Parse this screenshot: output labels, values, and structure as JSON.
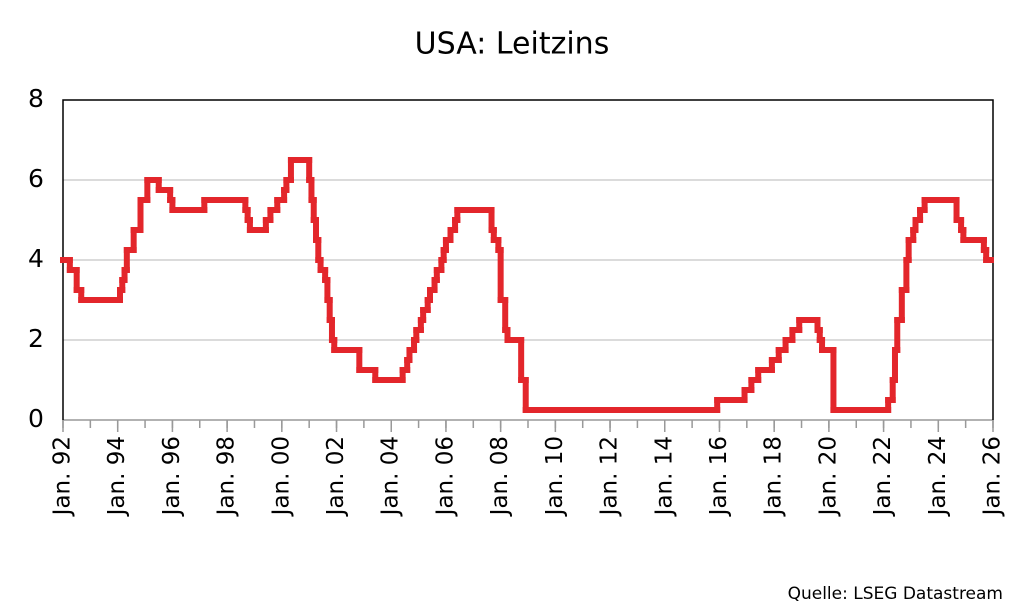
{
  "chart_data": {
    "type": "step",
    "title": "USA: Leitzins",
    "source": "Quelle: LSEG Datastream",
    "color": "#e3262b",
    "grid": true,
    "step": "post",
    "xlim": [
      "1992-01",
      "2026-01"
    ],
    "xticks": [
      {
        "value": "1992-01",
        "label": "Jan. 92"
      },
      {
        "value": "1994-01",
        "label": "Jan. 94"
      },
      {
        "value": "1996-01",
        "label": "Jan. 96"
      },
      {
        "value": "1998-01",
        "label": "Jan. 98"
      },
      {
        "value": "2000-01",
        "label": "Jan. 00"
      },
      {
        "value": "2002-01",
        "label": "Jan. 02"
      },
      {
        "value": "2004-01",
        "label": "Jan. 04"
      },
      {
        "value": "2006-01",
        "label": "Jan. 06"
      },
      {
        "value": "2008-01",
        "label": "Jan. 08"
      },
      {
        "value": "2010-01",
        "label": "Jan. 10"
      },
      {
        "value": "2012-01",
        "label": "Jan. 12"
      },
      {
        "value": "2014-01",
        "label": "Jan. 14"
      },
      {
        "value": "2016-01",
        "label": "Jan. 16"
      },
      {
        "value": "2018-01",
        "label": "Jan. 18"
      },
      {
        "value": "2020-01",
        "label": "Jan. 20"
      },
      {
        "value": "2022-01",
        "label": "Jan. 22"
      },
      {
        "value": "2024-01",
        "label": "Jan. 24"
      },
      {
        "value": "2026-01",
        "label": "Jan. 26"
      }
    ],
    "ylim": [
      0,
      8
    ],
    "yticks": [
      0,
      2,
      4,
      6,
      8
    ],
    "x": [
      "1992-01",
      "1992-04",
      "1992-07",
      "1992-09",
      "1994-02",
      "1994-03",
      "1994-04",
      "1994-05",
      "1994-08",
      "1994-11",
      "1995-02",
      "1995-07",
      "1995-12",
      "1996-01",
      "1997-03",
      "1998-09",
      "1998-10",
      "1998-11",
      "1999-06",
      "1999-08",
      "1999-11",
      "2000-02",
      "2000-03",
      "2000-05",
      "2001-01",
      "2001-02",
      "2001-03",
      "2001-04",
      "2001-05",
      "2001-06",
      "2001-08",
      "2001-09",
      "2001-10",
      "2001-11",
      "2001-12",
      "2002-11",
      "2003-06",
      "2004-06",
      "2004-08",
      "2004-09",
      "2004-11",
      "2004-12",
      "2005-02",
      "2005-03",
      "2005-05",
      "2005-06",
      "2005-08",
      "2005-09",
      "2005-11",
      "2005-12",
      "2006-01",
      "2006-03",
      "2006-05",
      "2006-06",
      "2007-09",
      "2007-10",
      "2007-12",
      "2008-01",
      "2008-03",
      "2008-04",
      "2008-10",
      "2008-12",
      "2015-12",
      "2016-12",
      "2017-03",
      "2017-06",
      "2017-12",
      "2018-03",
      "2018-06",
      "2018-09",
      "2018-12",
      "2019-08",
      "2019-09",
      "2019-10",
      "2020-03",
      "2022-03",
      "2022-05",
      "2022-06",
      "2022-07",
      "2022-09",
      "2022-11",
      "2022-12",
      "2023-02",
      "2023-03",
      "2023-05",
      "2023-07",
      "2024-09",
      "2024-11",
      "2024-12",
      "2025-09",
      "2025-10",
      "2025-12"
    ],
    "values": [
      4.0,
      3.75,
      3.25,
      3.0,
      3.25,
      3.5,
      3.75,
      4.25,
      4.75,
      5.5,
      6.0,
      5.75,
      5.5,
      5.25,
      5.5,
      5.25,
      5.0,
      4.75,
      5.0,
      5.25,
      5.5,
      5.75,
      6.0,
      6.5,
      6.0,
      5.5,
      5.0,
      4.5,
      4.0,
      3.75,
      3.5,
      3.0,
      2.5,
      2.0,
      1.75,
      1.25,
      1.0,
      1.25,
      1.5,
      1.75,
      2.0,
      2.25,
      2.5,
      2.75,
      3.0,
      3.25,
      3.5,
      3.75,
      4.0,
      4.25,
      4.5,
      4.75,
      5.0,
      5.25,
      4.75,
      4.5,
      4.25,
      3.0,
      2.25,
      2.0,
      1.0,
      0.25,
      0.5,
      0.75,
      1.0,
      1.25,
      1.5,
      1.75,
      2.0,
      2.25,
      2.5,
      2.25,
      2.0,
      1.75,
      0.25,
      0.5,
      1.0,
      1.75,
      2.5,
      3.25,
      4.0,
      4.5,
      4.75,
      5.0,
      5.25,
      5.5,
      5.0,
      4.75,
      4.5,
      4.25,
      4.0,
      4.0
    ]
  }
}
